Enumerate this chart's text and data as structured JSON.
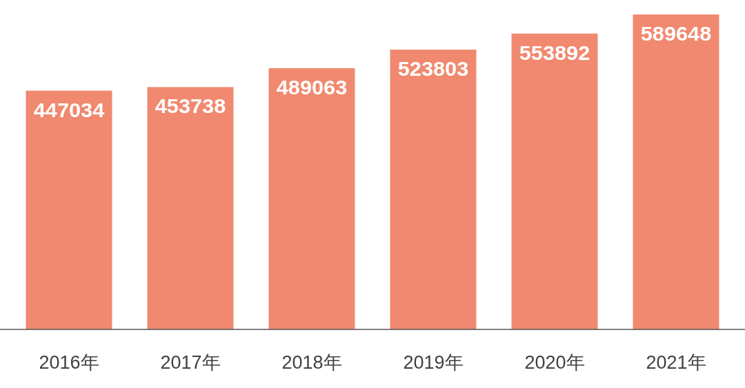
{
  "chart_data": {
    "type": "bar",
    "categories": [
      "2016年",
      "2017年",
      "2018年",
      "2019年",
      "2020年",
      "2021年"
    ],
    "values": [
      447034,
      453738,
      489063,
      523803,
      553892,
      589648
    ],
    "color": "#f0896f",
    "data_labels": true
  }
}
